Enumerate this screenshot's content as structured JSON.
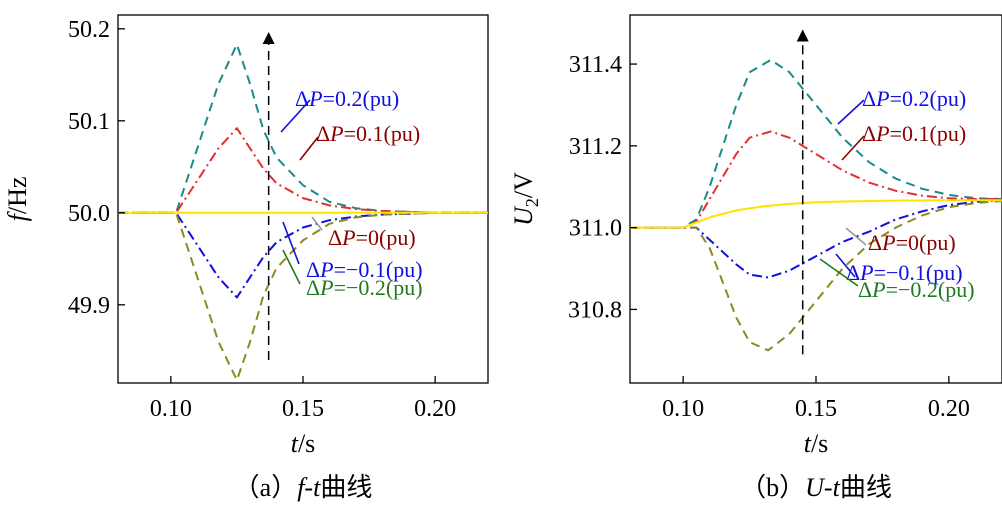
{
  "chart_data": [
    {
      "type": "line",
      "panel_caption": "（a）f-t曲线",
      "caption_prefix": "（a）",
      "caption_var": "f-t",
      "caption_suffix": "曲线",
      "xlabel_var": "t",
      "xlabel_unit": "/s",
      "ylabel_var": "f",
      "ylabel_unit": "/Hz",
      "xlim": [
        0.08,
        0.22
      ],
      "ylim": [
        49.815,
        50.215
      ],
      "xticks": [
        0.1,
        0.15,
        0.2
      ],
      "xtick_labels": [
        "0.10",
        "0.15",
        "0.20"
      ],
      "yticks": [
        49.9,
        50.0,
        50.1,
        50.2
      ],
      "ytick_labels": [
        "49.9",
        "50.0",
        "50.1",
        "50.2"
      ],
      "arrow": {
        "x": 0.137,
        "y_from": 49.84,
        "y_to": 50.19
      },
      "series": [
        {
          "name": "ΔP=0.2(pu)",
          "color": "#1a8a8a",
          "dash": "dashed",
          "x": [
            0.08,
            0.1,
            0.102,
            0.11,
            0.118,
            0.125,
            0.13,
            0.135,
            0.14,
            0.15,
            0.16,
            0.17,
            0.18,
            0.19,
            0.2,
            0.21,
            0.22
          ],
          "y": [
            50.0,
            50.0,
            50.0,
            50.07,
            50.14,
            50.183,
            50.14,
            50.09,
            50.06,
            50.03,
            50.012,
            50.005,
            50.002,
            50.001,
            50.0,
            50.0,
            50.0
          ]
        },
        {
          "name": "ΔP=0.1(pu)",
          "color": "#e03030",
          "dash": "dashdot",
          "x": [
            0.08,
            0.1,
            0.102,
            0.11,
            0.118,
            0.125,
            0.13,
            0.135,
            0.14,
            0.15,
            0.16,
            0.17,
            0.18,
            0.19,
            0.2,
            0.21,
            0.22
          ],
          "y": [
            50.0,
            50.0,
            50.0,
            50.035,
            50.07,
            50.092,
            50.07,
            50.048,
            50.032,
            50.016,
            50.008,
            50.004,
            50.002,
            50.001,
            50.0,
            50.0,
            50.0
          ]
        },
        {
          "name": "ΔP=0(pu)",
          "color": "#ffe400",
          "dash": "solid",
          "x": [
            0.08,
            0.22
          ],
          "y": [
            50.0,
            50.0
          ]
        },
        {
          "name": "ΔP=−0.1(pu)",
          "color": "#1010e0",
          "dash": "dashdot",
          "x": [
            0.08,
            0.1,
            0.102,
            0.11,
            0.118,
            0.125,
            0.13,
            0.135,
            0.14,
            0.15,
            0.16,
            0.17,
            0.18,
            0.19,
            0.2,
            0.21,
            0.22
          ],
          "y": [
            50.0,
            50.0,
            50.0,
            49.965,
            49.93,
            49.908,
            49.93,
            49.952,
            49.968,
            49.984,
            49.992,
            49.996,
            49.998,
            49.999,
            50.0,
            50.0,
            50.0
          ]
        },
        {
          "name": "ΔP=−0.2(pu)",
          "color": "#8a8a20",
          "dash": "dashed",
          "x": [
            0.08,
            0.1,
            0.102,
            0.11,
            0.118,
            0.125,
            0.13,
            0.135,
            0.14,
            0.15,
            0.16,
            0.17,
            0.18,
            0.19,
            0.2,
            0.21,
            0.22
          ],
          "y": [
            50.0,
            50.0,
            50.0,
            49.93,
            49.86,
            49.818,
            49.86,
            49.91,
            49.94,
            49.97,
            49.988,
            49.995,
            49.998,
            49.999,
            50.0,
            50.0,
            50.0
          ]
        }
      ],
      "annotations": [
        {
          "series": 0,
          "prefix": "Δ",
          "var": "P",
          "value": "=0.2(pu)",
          "color": "#1010e0"
        },
        {
          "series": 1,
          "prefix": "Δ",
          "var": "P",
          "value": "=0.1(pu)",
          "color": "#8b0000"
        },
        {
          "series": 2,
          "prefix": "Δ",
          "var": "P",
          "value": "=0(pu)",
          "color": "#8b0000"
        },
        {
          "series": 3,
          "prefix": "Δ",
          "var": "P",
          "value": "=−0.1(pu)",
          "color": "#1010e0"
        },
        {
          "series": 4,
          "prefix": "Δ",
          "var": "P",
          "value": "=−0.2(pu)",
          "color": "#207a20"
        }
      ]
    },
    {
      "type": "line",
      "panel_caption": "（b）U-t曲线",
      "caption_prefix": "（b）",
      "caption_var": "U-t",
      "caption_suffix": "曲线",
      "xlabel_var": "t",
      "xlabel_unit": "/s",
      "ylabel_var": "U",
      "ylabel_sub": "2",
      "ylabel_unit": "/V",
      "xlim": [
        0.08,
        0.22
      ],
      "ylim": [
        310.62,
        311.52
      ],
      "xticks": [
        0.1,
        0.15,
        0.2
      ],
      "xtick_labels": [
        "0.10",
        "0.15",
        "0.20"
      ],
      "yticks": [
        310.8,
        311.0,
        311.2,
        311.4
      ],
      "ytick_labels": [
        "310.8",
        "311.0",
        "311.2",
        "311.4"
      ],
      "arrow": {
        "x": 0.145,
        "y_from": 310.69,
        "y_to": 311.47
      },
      "series": [
        {
          "name": "ΔP=0.2(pu)",
          "color": "#1a8a8a",
          "dash": "dashed",
          "x": [
            0.08,
            0.1,
            0.105,
            0.11,
            0.12,
            0.125,
            0.133,
            0.14,
            0.15,
            0.16,
            0.17,
            0.18,
            0.19,
            0.2,
            0.21,
            0.22
          ],
          "y": [
            311.0,
            311.0,
            311.02,
            311.1,
            311.3,
            311.38,
            311.41,
            311.38,
            311.3,
            311.22,
            311.16,
            311.12,
            311.095,
            311.08,
            311.072,
            311.07
          ]
        },
        {
          "name": "ΔP=0.1(pu)",
          "color": "#e03030",
          "dash": "dashdot",
          "x": [
            0.08,
            0.1,
            0.105,
            0.11,
            0.12,
            0.125,
            0.133,
            0.14,
            0.15,
            0.16,
            0.17,
            0.18,
            0.19,
            0.2,
            0.21,
            0.22
          ],
          "y": [
            311.0,
            311.0,
            311.015,
            311.07,
            311.18,
            311.22,
            311.235,
            311.22,
            311.18,
            311.14,
            311.11,
            311.09,
            311.078,
            311.072,
            311.07,
            311.07
          ]
        },
        {
          "name": "ΔP=0(pu)",
          "color": "#ffe400",
          "dash": "solid",
          "x": [
            0.08,
            0.1,
            0.11,
            0.12,
            0.13,
            0.14,
            0.15,
            0.16,
            0.18,
            0.2,
            0.22
          ],
          "y": [
            311.0,
            311.0,
            311.025,
            311.042,
            311.052,
            311.058,
            311.062,
            311.064,
            311.066,
            311.067,
            311.067
          ]
        },
        {
          "name": "ΔP=−0.1(pu)",
          "color": "#1010e0",
          "dash": "dashdot",
          "x": [
            0.08,
            0.1,
            0.105,
            0.11,
            0.12,
            0.125,
            0.132,
            0.14,
            0.15,
            0.16,
            0.17,
            0.18,
            0.19,
            0.2,
            0.21,
            0.22
          ],
          "y": [
            311.0,
            311.0,
            311.0,
            310.97,
            310.91,
            310.885,
            310.878,
            310.895,
            310.93,
            310.965,
            310.99,
            311.02,
            311.04,
            311.055,
            311.063,
            311.067
          ]
        },
        {
          "name": "ΔP=−0.2(pu)",
          "color": "#8a8a20",
          "dash": "dashed",
          "x": [
            0.08,
            0.1,
            0.105,
            0.11,
            0.12,
            0.125,
            0.132,
            0.14,
            0.15,
            0.16,
            0.17,
            0.18,
            0.19,
            0.2,
            0.21,
            0.22
          ],
          "y": [
            311.0,
            311.0,
            311.0,
            310.95,
            310.78,
            310.72,
            310.7,
            310.74,
            310.82,
            310.9,
            310.96,
            311.0,
            311.03,
            311.05,
            311.06,
            311.065
          ]
        }
      ],
      "annotations": [
        {
          "series": 0,
          "prefix": "Δ",
          "var": "P",
          "value": "=0.2(pu)",
          "color": "#1010e0"
        },
        {
          "series": 1,
          "prefix": "Δ",
          "var": "P",
          "value": "=0.1(pu)",
          "color": "#8b0000"
        },
        {
          "series": 2,
          "prefix": "Δ",
          "var": "P",
          "value": "=0(pu)",
          "color": "#8b0000"
        },
        {
          "series": 3,
          "prefix": "Δ",
          "var": "P",
          "value": "=−0.1(pu)",
          "color": "#1010e0"
        },
        {
          "series": 4,
          "prefix": "Δ",
          "var": "P",
          "value": "=−0.2(pu)",
          "color": "#207a20"
        }
      ]
    }
  ]
}
